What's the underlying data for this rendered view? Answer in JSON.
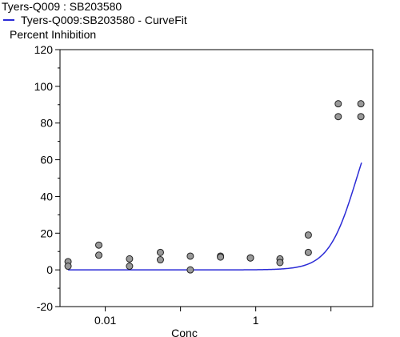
{
  "chart_data": {
    "type": "scatter",
    "title": "Tyers-Q009  :  SB203580",
    "xlabel": "Conc",
    "ylabel": "Percent  Inhibition",
    "x_scale": "log10",
    "xlim": [
      0.0025,
      36
    ],
    "ylim": [
      -20,
      120
    ],
    "y_ticks": [
      -20,
      0,
      20,
      40,
      60,
      80,
      100,
      120
    ],
    "x_tick_labels": [
      {
        "value": 0.01,
        "label": "0.01"
      },
      {
        "value": 1,
        "label": "1"
      }
    ],
    "x_major_ticks": [
      0.01,
      0.1,
      1,
      10
    ],
    "grid": false,
    "legend": {
      "position": "top-left"
    },
    "series": [
      {
        "name": "Tyers-Q009:SB203580",
        "kind": "points",
        "color": "#999999",
        "x": [
          0.0032,
          0.0032,
          0.0082,
          0.0082,
          0.021,
          0.021,
          0.054,
          0.054,
          0.135,
          0.135,
          0.34,
          0.34,
          0.85,
          0.85,
          2.1,
          2.1,
          5.0,
          5.0,
          12.5,
          12.5,
          25.0,
          25.0
        ],
        "y": [
          4.5,
          2.0,
          13.5,
          8.0,
          6.0,
          2.0,
          9.5,
          5.5,
          7.5,
          0.0,
          7.5,
          7.0,
          6.5,
          6.5,
          6.0,
          4.0,
          19.0,
          9.5,
          90.5,
          83.5,
          90.5,
          83.5
        ]
      },
      {
        "name": "Tyers-Q009:SB203580 - CurveFit",
        "kind": "curve",
        "color": "#2b2bd6",
        "bottom": 0,
        "top": 100,
        "ec50": 22,
        "hill": 2.3
      }
    ]
  }
}
